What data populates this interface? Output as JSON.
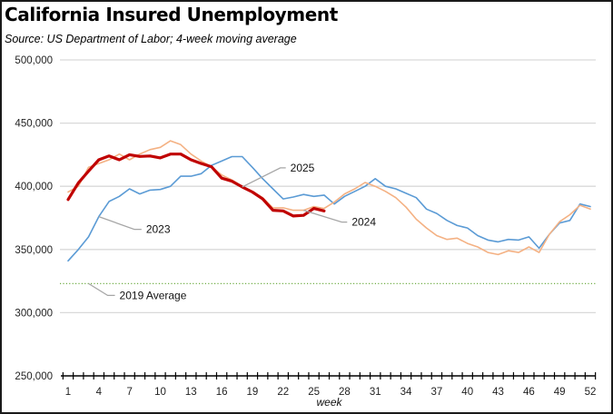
{
  "chart_data": {
    "type": "line",
    "title": "California Insured Unemployment",
    "subtitle": "Source:  US Department of Labor; 4-week moving average",
    "xlabel": "week",
    "ylabel": "",
    "xlim": [
      1,
      52
    ],
    "ylim": [
      250000,
      500000
    ],
    "grid": true,
    "x_ticks": [
      1,
      4,
      7,
      10,
      13,
      16,
      19,
      22,
      25,
      28,
      31,
      34,
      37,
      40,
      43,
      46,
      49,
      52
    ],
    "y_ticks": [
      250000,
      300000,
      350000,
      400000,
      450000,
      500000
    ],
    "y_tick_labels": [
      "250,000",
      "300,000",
      "350,000",
      "400,000",
      "450,000",
      "500,000"
    ],
    "x": [
      1,
      2,
      3,
      4,
      5,
      6,
      7,
      8,
      9,
      10,
      11,
      12,
      13,
      14,
      15,
      16,
      17,
      18,
      19,
      20,
      21,
      22,
      23,
      24,
      25,
      26,
      27,
      28,
      29,
      30,
      31,
      32,
      33,
      34,
      35,
      36,
      37,
      38,
      39,
      40,
      41,
      42,
      43,
      44,
      45,
      46,
      47,
      48,
      49,
      50,
      51,
      52
    ],
    "series": [
      {
        "name": "2023",
        "color": "#5b9bd5",
        "values": [
          341000,
          350000,
          360000,
          376000,
          388000,
          392000,
          398000,
          394000,
          397000,
          397500,
          400000,
          408000,
          408000,
          410000,
          416500,
          420000,
          423500,
          423500,
          415000,
          406000,
          398000,
          390000,
          391500,
          393500,
          392000,
          393000,
          386000,
          392000,
          396000,
          400000,
          406000,
          400000,
          398000,
          394500,
          391000,
          382000,
          378500,
          373000,
          369000,
          367000,
          361000,
          357500,
          356000,
          358000,
          357500,
          360000,
          351000,
          362000,
          371000,
          373000,
          386000,
          384000
        ]
      },
      {
        "name": "2024",
        "color": "#f4b183",
        "values": [
          395500,
          400000,
          415000,
          418000,
          421000,
          425500,
          421000,
          425500,
          429000,
          430800,
          436000,
          433000,
          425500,
          420000,
          415500,
          409000,
          405000,
          400000,
          396000,
          391000,
          383000,
          383000,
          381000,
          381000,
          384000,
          382500,
          387500,
          394000,
          398000,
          403000,
          400000,
          396000,
          391000,
          383500,
          374000,
          367000,
          361000,
          358000,
          359000,
          354800,
          352000,
          347600,
          346000,
          349000,
          347600,
          352000,
          347600,
          362000,
          372000,
          377500,
          385000,
          382000
        ]
      },
      {
        "name": "2025",
        "color": "#c00000",
        "values": [
          389500,
          402700,
          412000,
          421000,
          424000,
          421000,
          425000,
          423600,
          424000,
          422500,
          425500,
          425500,
          421000,
          418000,
          415500,
          406500,
          404000,
          399500,
          395500,
          390000,
          381000,
          380500,
          376500,
          377000,
          382500,
          380500
        ]
      }
    ],
    "reference_lines": [
      {
        "name": "2019 Average",
        "value": 323000,
        "color": "#70ad47",
        "style": "dotted"
      }
    ],
    "annotations": [
      {
        "label": "2023",
        "series": "2023",
        "at_week": 4
      },
      {
        "label": "2024",
        "series": "2024",
        "at_week": 24
      },
      {
        "label": "2025",
        "series": "2025",
        "at_week": 18
      },
      {
        "label": "2019 Average",
        "series": "2019 Average",
        "at_week": 3
      }
    ],
    "legend": "none (inline labels)"
  }
}
